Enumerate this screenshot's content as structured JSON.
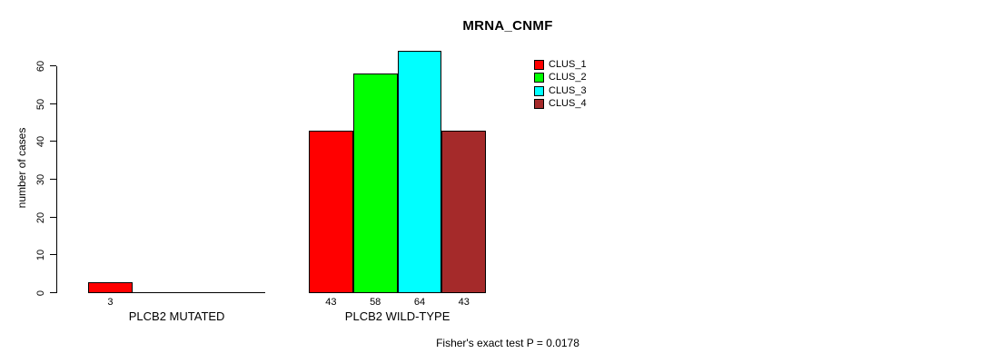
{
  "title": "MRNA_CNMF",
  "chart_data": {
    "type": "bar",
    "title": "MRNA_CNMF",
    "xlabel": "",
    "ylabel": "number of cases",
    "ylim": [
      0,
      60
    ],
    "yticks": [
      0,
      10,
      20,
      30,
      40,
      50,
      60
    ],
    "grid": false,
    "legend_position": "top-right",
    "categories": [
      "PLCB2 MUTATED",
      "PLCB2 WILD-TYPE"
    ],
    "series": [
      {
        "name": "CLUS_1",
        "color": "#ff0000",
        "values": [
          3,
          43
        ]
      },
      {
        "name": "CLUS_2",
        "color": "#00ff00",
        "values": [
          0,
          58
        ]
      },
      {
        "name": "CLUS_3",
        "color": "#00ffff",
        "values": [
          0,
          64
        ]
      },
      {
        "name": "CLUS_4",
        "color": "#a52a2a",
        "values": [
          0,
          43
        ]
      }
    ],
    "show_bar_value_labels": true,
    "label_zero_values": false,
    "zero_bars_drawn_flat": true,
    "annotation": "Fisher's exact test P = 0.0178"
  }
}
